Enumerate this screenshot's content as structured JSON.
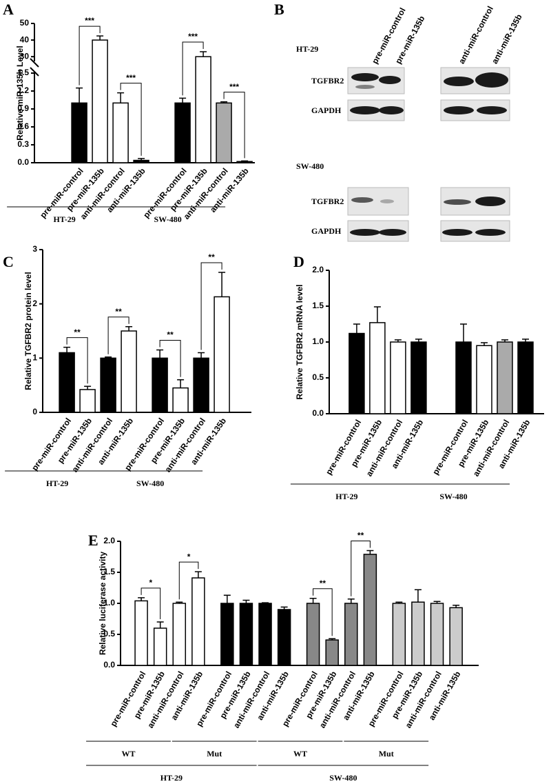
{
  "chart_data": [
    {
      "type": "bar",
      "panel": "A",
      "ylabel": "Relative miR-135b Level",
      "categories": [
        "pre-miR-control",
        "pre-miR-135b",
        "anti-miR-control",
        "anti-miR-135b",
        "pre-miR-control",
        "pre-miR-135b",
        "anti-miR-control",
        "anti-miR-135b"
      ],
      "values": [
        1,
        40,
        1,
        0.04,
        1,
        30,
        1,
        0.02
      ],
      "errors": [
        0.25,
        2.5,
        0.17,
        0.03,
        0.08,
        3,
        0.02,
        0.01
      ],
      "colors": [
        "#000000",
        "#ffffff",
        "#ffffff",
        "#000000",
        "#000000",
        "#ffffff",
        "#aaaaaa",
        "#000000"
      ],
      "groups": [
        "HT-29",
        "SW-480"
      ],
      "ylim": [
        0,
        50
      ],
      "ybreak": [
        1.5,
        28
      ],
      "yticks": [
        {
          "value": 0,
          "label": "0.0"
        },
        0.3,
        0.6,
        0.9,
        1.2,
        1.5,
        30,
        40,
        50
      ],
      "brackets": [
        {
          "label": "***",
          "bars": [
            0,
            1
          ]
        },
        {
          "label": "***",
          "bars": [
            2,
            3
          ]
        },
        {
          "label": "***",
          "bars": [
            4,
            5
          ]
        },
        {
          "label": "***",
          "bars": [
            6,
            7
          ]
        }
      ]
    },
    {
      "type": "bar",
      "panel": "C",
      "ylabel": "Relative TGFBR2 protein level",
      "categories": [
        "pre-miR-control",
        "pre-miR-135b",
        "anti-miR-control",
        "anti-miR-135b",
        "pre-miR-control",
        "pre-miR-135b",
        "anti-miR-control",
        "anti-miR-135b"
      ],
      "values": [
        1.1,
        0.42,
        1,
        1.5,
        1,
        0.45,
        1,
        2.13
      ],
      "errors": [
        0.1,
        0.06,
        0.02,
        0.08,
        0.15,
        0.15,
        0.1,
        0.45
      ],
      "colors": [
        "#000000",
        "#ffffff",
        "#000000",
        "#ffffff",
        "#000000",
        "#ffffff",
        "#000000",
        "#ffffff"
      ],
      "groups": [
        "HT-29",
        "SW-480"
      ],
      "ylim": [
        0,
        3
      ],
      "yticks": [
        0,
        1,
        2,
        3
      ],
      "brackets": [
        {
          "label": "**",
          "bars": [
            0,
            1
          ]
        },
        {
          "label": "**",
          "bars": [
            2,
            3
          ]
        },
        {
          "label": "**",
          "bars": [
            4,
            5
          ]
        },
        {
          "label": "**",
          "bars": [
            6,
            7
          ]
        }
      ]
    },
    {
      "type": "bar",
      "panel": "D",
      "ylabel": "Relative TGFBR2 mRNA level",
      "categories": [
        "pre-miR-control",
        "pre-miR-135b",
        "anti-miR-control",
        "anti-miR-135b",
        "pre-miR-control",
        "pre-miR-135b",
        "anti-miR-control",
        "anti-miR-135b"
      ],
      "values": [
        1.12,
        1.27,
        1,
        1,
        1,
        0.95,
        1,
        1
      ],
      "errors": [
        0.13,
        0.22,
        0.03,
        0.04,
        0.25,
        0.04,
        0.03,
        0.04
      ],
      "colors": [
        "#000000",
        "#ffffff",
        "#ffffff",
        "#000000",
        "#000000",
        "#ffffff",
        "#aaaaaa",
        "#000000"
      ],
      "groups": [
        "HT-29",
        "SW-480"
      ],
      "ylim": [
        0,
        2
      ],
      "yticks": [
        {
          "value": 0,
          "label": "0.0"
        },
        0.5,
        {
          "value": 1,
          "label": "1.0"
        },
        1.5,
        {
          "value": 2,
          "label": "2.0"
        }
      ],
      "brackets": []
    },
    {
      "type": "bar",
      "panel": "E",
      "ylabel": "Relative luciferase activity",
      "categories": [
        "pre-miR-control",
        "pre-miR-135b",
        "anti-miR-control",
        "anti-miR-135b",
        "pre-miR-control",
        "pre-miR-135b",
        "anti-miR-control",
        "anti-miR-135b",
        "pre-miR-control",
        "pre-miR-135b",
        "anti-miR-control",
        "anti-miR-135b",
        "pre-miR-control",
        "pre-miR-135b",
        "anti-miR-control",
        "anti-miR-135b"
      ],
      "values": [
        1.04,
        0.6,
        1,
        1.41,
        1,
        1,
        1,
        0.9,
        1,
        0.41,
        1,
        1.79,
        1,
        1.02,
        1,
        0.93
      ],
      "errors": [
        0.05,
        0.1,
        0.02,
        0.1,
        0.13,
        0.05,
        0.01,
        0.04,
        0.08,
        0.02,
        0.07,
        0.06,
        0.02,
        0.2,
        0.03,
        0.04
      ],
      "colors": [
        "#ffffff",
        "#ffffff",
        "#ffffff",
        "#ffffff",
        "#000000",
        "#000000",
        "#000000",
        "#000000",
        "#888888",
        "#888888",
        "#888888",
        "#888888",
        "#cccccc",
        "#cccccc",
        "#cccccc",
        "#cccccc"
      ],
      "groups": [
        "WT",
        "Mut",
        "WT",
        "Mut"
      ],
      "supergroups": [
        "HT-29",
        "SW-480"
      ],
      "ylim": [
        0,
        2
      ],
      "yticks": [
        {
          "value": 0,
          "label": "0.0"
        },
        0.5,
        {
          "value": 1,
          "label": "1.0"
        },
        1.5,
        {
          "value": 2,
          "label": "2.0"
        }
      ],
      "brackets": [
        {
          "label": "*",
          "bars": [
            0,
            1
          ]
        },
        {
          "label": "*",
          "bars": [
            2,
            3
          ]
        },
        {
          "label": "**",
          "bars": [
            8,
            9
          ]
        },
        {
          "label": "**",
          "bars": [
            10,
            11
          ]
        }
      ]
    }
  ],
  "blot": {
    "panel": "B",
    "columns": [
      "pre-miR-control",
      "pre-miR-135b",
      "anti-miR-control",
      "anti-miR-135b"
    ],
    "cell_lines": [
      {
        "name": "HT-29",
        "rows": [
          "TGFBR2",
          "GAPDH"
        ]
      },
      {
        "name": "SW-480",
        "rows": [
          "TGFBR2",
          "GAPDH"
        ]
      }
    ]
  }
}
